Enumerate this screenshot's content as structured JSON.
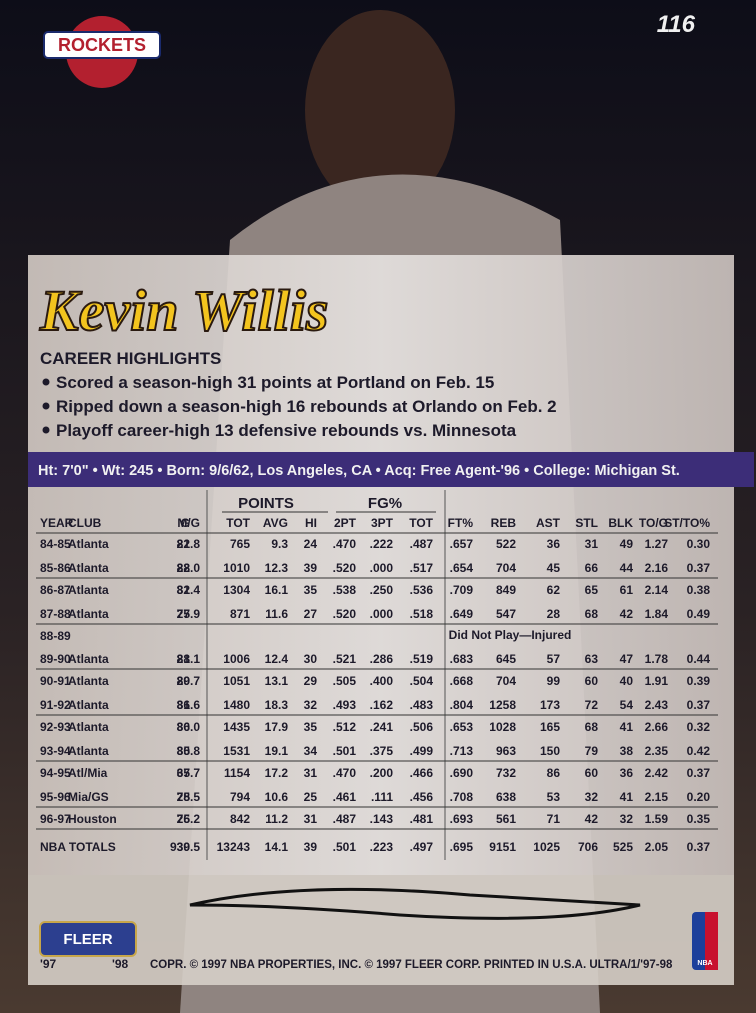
{
  "card_number": "116",
  "team_logo": "ROCKETS",
  "player_name": "Kevin Willis",
  "highlights": {
    "title": "CAREER HIGHLIGHTS",
    "items": [
      "Scored a season-high 31 points at Portland on Feb. 15",
      "Ripped down a season-high 16 rebounds at Orlando on Feb. 2",
      "Playoff career-high 13 defensive rebounds vs. Minnesota"
    ]
  },
  "bio": "Ht: 7'0\" • Wt: 245 • Born: 9/6/62, Los Angeles, CA • Acq: Free Agent-'96 • College: Michigan St.",
  "table": {
    "group_headers": [
      "POINTS",
      "FG%"
    ],
    "columns": [
      "YEAR",
      "CLUB",
      "G",
      "M/G",
      "TOT",
      "AVG",
      "HI",
      "2PT",
      "3PT",
      "TOT",
      "FT%",
      "REB",
      "AST",
      "STL",
      "BLK",
      "TO/G",
      "ST/TO%"
    ],
    "rows": [
      [
        "84-85",
        "Atlanta",
        "82",
        "21.8",
        "765",
        "9.3",
        "24",
        ".470",
        ".222",
        ".487",
        ".657",
        "522",
        "36",
        "31",
        "49",
        "1.27",
        "0.30"
      ],
      [
        "85-86",
        "Atlanta",
        "82",
        "28.0",
        "1010",
        "12.3",
        "39",
        ".520",
        ".000",
        ".517",
        ".654",
        "704",
        "45",
        "66",
        "44",
        "2.16",
        "0.37"
      ],
      [
        "86-87",
        "Atlanta",
        "81",
        "32.4",
        "1304",
        "16.1",
        "35",
        ".538",
        ".250",
        ".536",
        ".709",
        "849",
        "62",
        "65",
        "61",
        "2.14",
        "0.38"
      ],
      [
        "87-88",
        "Atlanta",
        "75",
        "27.9",
        "871",
        "11.6",
        "27",
        ".520",
        ".000",
        ".518",
        ".649",
        "547",
        "28",
        "68",
        "42",
        "1.84",
        "0.49"
      ],
      [
        "88-89",
        "Did Not Play—Injured"
      ],
      [
        "89-90",
        "Atlanta",
        "81",
        "28.1",
        "1006",
        "12.4",
        "30",
        ".521",
        ".286",
        ".519",
        ".683",
        "645",
        "57",
        "63",
        "47",
        "1.78",
        "0.44"
      ],
      [
        "90-91",
        "Atlanta",
        "80",
        "29.7",
        "1051",
        "13.1",
        "29",
        ".505",
        ".400",
        ".504",
        ".668",
        "704",
        "99",
        "60",
        "40",
        "1.91",
        "0.39"
      ],
      [
        "91-92",
        "Atlanta",
        "81",
        "36.6",
        "1480",
        "18.3",
        "32",
        ".493",
        ".162",
        ".483",
        ".804",
        "1258",
        "173",
        "72",
        "54",
        "2.43",
        "0.37"
      ],
      [
        "92-93",
        "Atlanta",
        "80",
        "36.0",
        "1435",
        "17.9",
        "35",
        ".512",
        ".241",
        ".506",
        ".653",
        "1028",
        "165",
        "68",
        "41",
        "2.66",
        "0.32"
      ],
      [
        "93-94",
        "Atlanta",
        "80",
        "35.8",
        "1531",
        "19.1",
        "34",
        ".501",
        ".375",
        ".499",
        ".713",
        "963",
        "150",
        "79",
        "38",
        "2.35",
        "0.42"
      ],
      [
        "94-95",
        "Atl/Mia",
        "67",
        "35.7",
        "1154",
        "17.2",
        "31",
        ".470",
        ".200",
        ".466",
        ".690",
        "732",
        "86",
        "60",
        "36",
        "2.42",
        "0.37"
      ],
      [
        "95-96",
        "Mia/GS",
        "75",
        "28.5",
        "794",
        "10.6",
        "25",
        ".461",
        ".111",
        ".456",
        ".708",
        "638",
        "53",
        "32",
        "41",
        "2.15",
        "0.20"
      ],
      [
        "96-97",
        "Houston",
        "75",
        "26.2",
        "842",
        "11.2",
        "31",
        ".487",
        ".143",
        ".481",
        ".693",
        "561",
        "71",
        "42",
        "32",
        "1.59",
        "0.35"
      ]
    ],
    "totals": [
      "NBA TOTALS",
      "939",
      "30.5",
      "13243",
      "14.1",
      "39",
      ".501",
      ".223",
      ".497",
      ".695",
      "9151",
      "1025",
      "706",
      "525",
      "2.05",
      "0.37"
    ]
  },
  "footer": {
    "brand": "FLEER",
    "year_left": "'97",
    "year_right": "'98",
    "copyright": "COPR. © 1997 NBA PROPERTIES, INC. © 1997 FLEER CORP. PRINTED IN U.S.A. ULTRA/1/'97-98",
    "league": "NBA"
  }
}
